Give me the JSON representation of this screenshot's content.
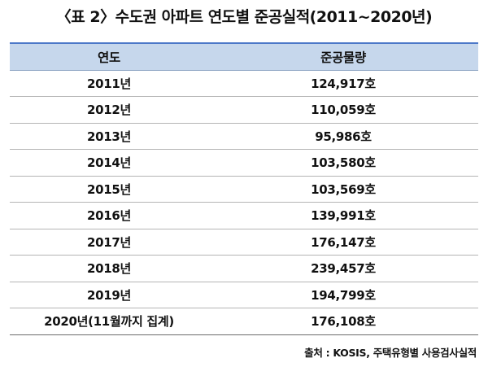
{
  "title": "〈표 2〉수도권 아파트 연도별 준공실적(2011~2020년)",
  "table": {
    "headers": [
      "연도",
      "준공물량"
    ],
    "rows": [
      {
        "year": "2011년",
        "value": "124,917호"
      },
      {
        "year": "2012년",
        "value": "110,059호"
      },
      {
        "year": "2013년",
        "value": "95,986호"
      },
      {
        "year": "2014년",
        "value": "103,580호"
      },
      {
        "year": "2015년",
        "value": "103,569호"
      },
      {
        "year": "2016년",
        "value": "139,991호"
      },
      {
        "year": "2017년",
        "value": "176,147호"
      },
      {
        "year": "2018년",
        "value": "239,457호"
      },
      {
        "year": "2019년",
        "value": "194,799호"
      },
      {
        "year": "2020년(11월까지 집계)",
        "value": "176,108호"
      }
    ]
  },
  "source": "출처 : KOSIS, 주택유형별 사용검사실적",
  "colors": {
    "header_bg": "#c6d7ec",
    "header_top_rule": "#4c78c8"
  }
}
